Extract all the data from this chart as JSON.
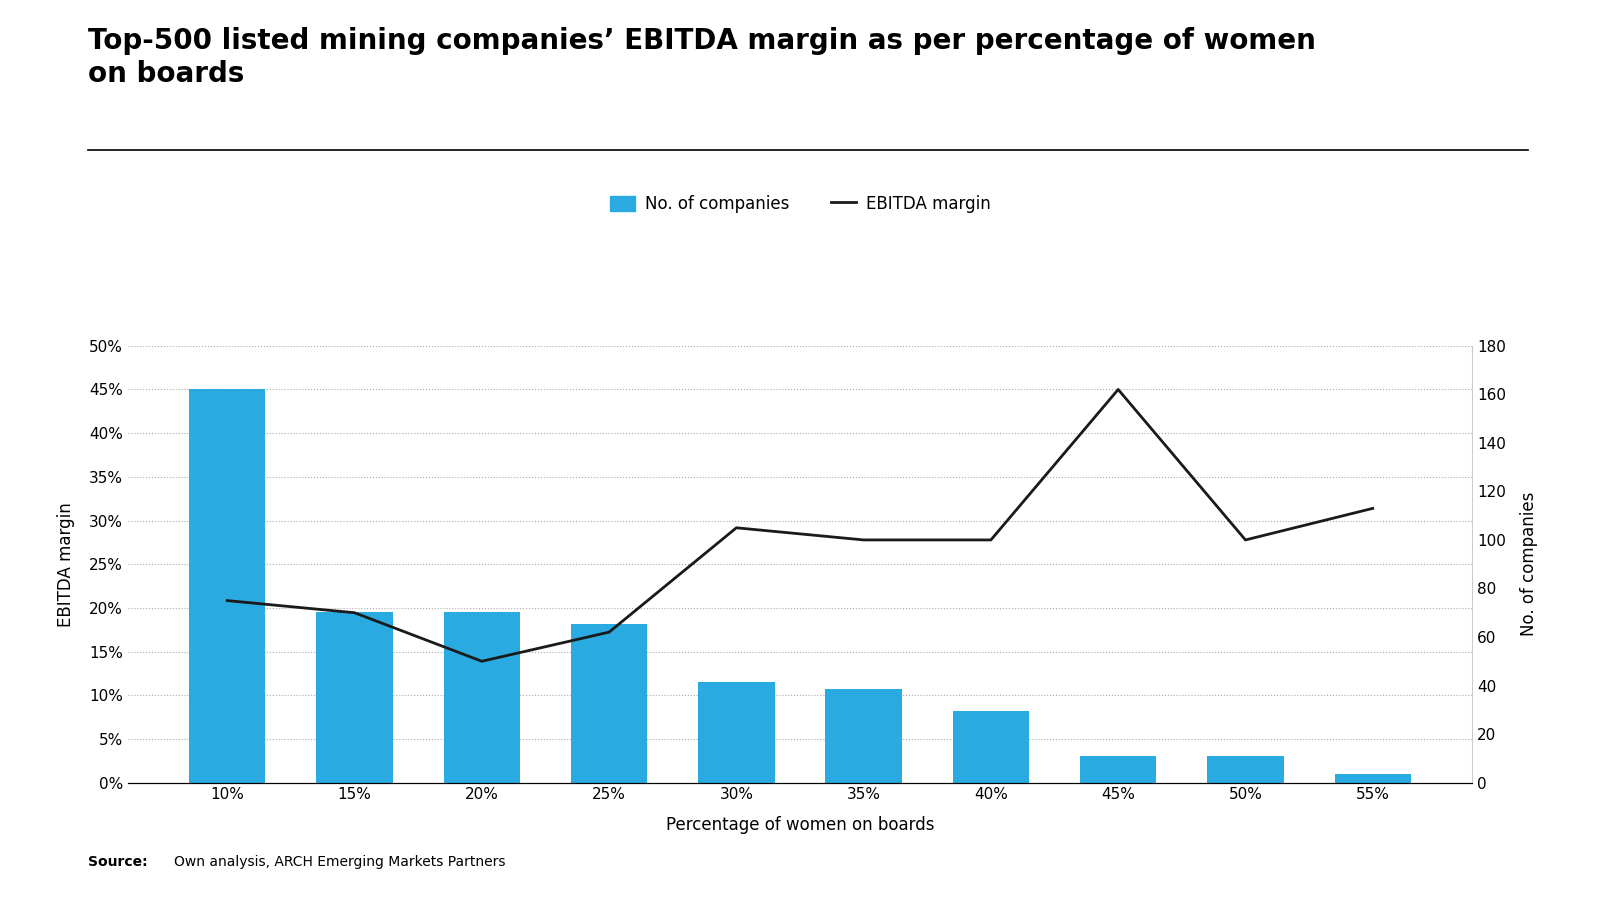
{
  "title": "Top-500 listed mining companies’ EBITDA margin as per percentage of women\non boards",
  "categories": [
    "10%",
    "15%",
    "20%",
    "25%",
    "30%",
    "35%",
    "40%",
    "45%",
    "50%",
    "55%"
  ],
  "bar_values": [
    0.45,
    0.195,
    0.195,
    0.182,
    0.115,
    0.107,
    0.082,
    0.03,
    0.031,
    0.01
  ],
  "line_values": [
    75,
    70,
    50,
    62,
    105,
    100,
    100,
    162,
    100,
    113
  ],
  "bar_color": "#29ABE2",
  "line_color": "#1a1a1a",
  "xlabel": "Percentage of women on boards",
  "ylabel_left": "EBITDA margin",
  "ylabel_right": "No. of companies",
  "ylim_left": [
    0,
    0.5
  ],
  "ylim_right": [
    0,
    180
  ],
  "yticks_left": [
    0.0,
    0.05,
    0.1,
    0.15,
    0.2,
    0.25,
    0.3,
    0.35,
    0.4,
    0.45,
    0.5
  ],
  "yticks_right": [
    0,
    20,
    40,
    60,
    80,
    100,
    120,
    140,
    160,
    180
  ],
  "legend_bar_label": "No. of companies",
  "legend_line_label": "EBITDA margin",
  "source_bold": "Source:",
  "source_normal": "Own analysis, ARCH Emerging Markets Partners",
  "background_color": "#ffffff",
  "title_fontsize": 20,
  "axis_fontsize": 12,
  "tick_fontsize": 11,
  "legend_fontsize": 12
}
